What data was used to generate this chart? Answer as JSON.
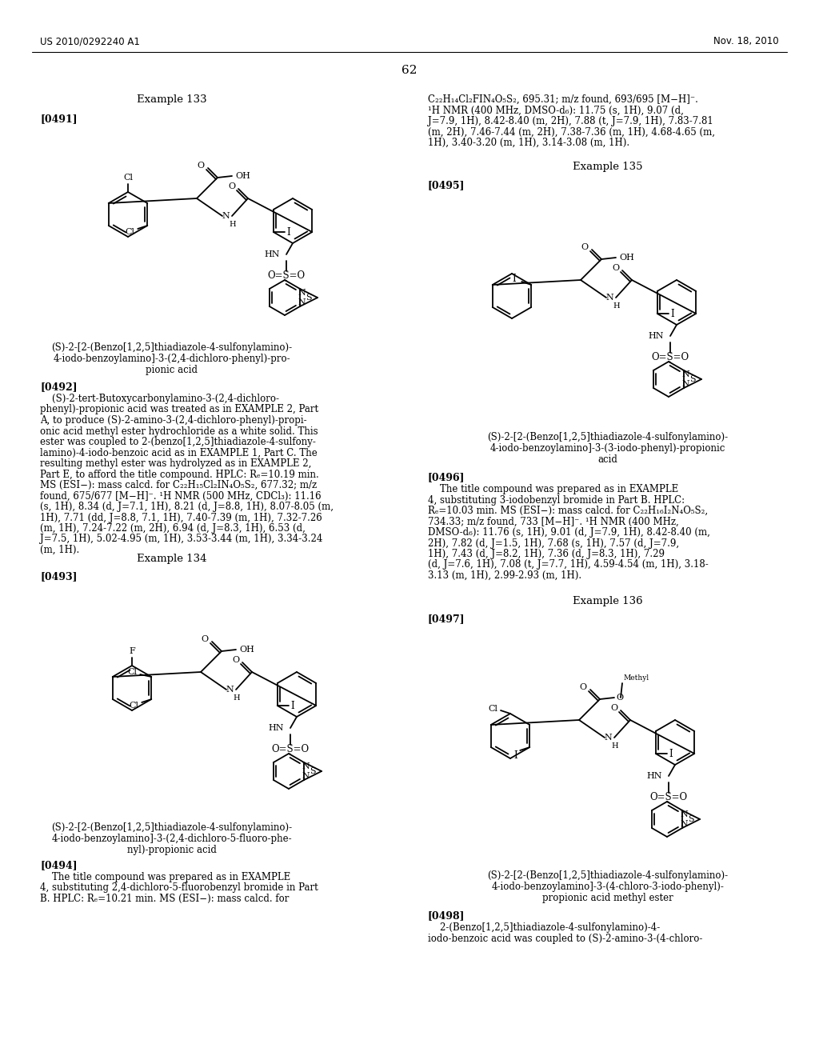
{
  "bg": "#ffffff",
  "header_left": "US 2010/0292240 A1",
  "header_right": "Nov. 18, 2010",
  "page_num": "62",
  "ex133_title": "Example 133",
  "ex133_tag": "[0491]",
  "ex133_name_lines": [
    "(S)-2-[2-(Benzo[1,2,5]thiadiazole-4-sulfonylamino)-",
    "4-iodo-benzoylamino]-3-(2,4-dichloro-phenyl)-pro-",
    "pionic acid"
  ],
  "p492_tag": "[0492]",
  "p492_lines": [
    "    (S)-2-tert-Butoxycarbonylamino-3-(2,4-dichloro-",
    "phenyl)-propionic acid was treated as in EXAMPLE 2, Part",
    "A, to produce (S)-2-amino-3-(2,4-dichloro-phenyl)-propi-",
    "onic acid methyl ester hydrochloride as a white solid. This",
    "ester was coupled to 2-(benzo[1,2,5]thiadiazole-4-sulfony-",
    "lamino)-4-iodo-benzoic acid as in EXAMPLE 1, Part C. The",
    "resulting methyl ester was hydrolyzed as in EXAMPLE 2,",
    "Part E, to afford the title compound. HPLC: Rₑ=10.19 min.",
    "MS (ESI−): mass calcd. for C₂₂H₁₅Cl₂IN₄O₅S₂, 677.32; m/z",
    "found, 675/677 [M−H]⁻. ¹H NMR (500 MHz, CDCl₃): 11.16",
    "(s, 1H), 8.34 (d, J=7.1, 1H), 8.21 (d, J=8.8, 1H), 8.07-8.05 (m,",
    "1H), 7.71 (dd, J=8.8, 7.1, 1H), 7.40-7.39 (m, 1H), 7.32-7.26",
    "(m, 1H), 7.24-7.22 (m, 2H), 6.94 (d, J=8.3, 1H), 6.53 (d,",
    "J=7.5, 1H), 5.02-4.95 (m, 1H), 3.53-3.44 (m, 1H), 3.34-3.24",
    "(m, 1H)."
  ],
  "ex134_title": "Example 134",
  "ex134_tag": "[0493]",
  "ex134_name_lines": [
    "(S)-2-[2-(Benzo[1,2,5]thiadiazole-4-sulfonylamino)-",
    "4-iodo-benzoylamino]-3-(2,4-dichloro-5-fluoro-phe-",
    "nyl)-propionic acid"
  ],
  "p494_tag": "[0494]",
  "p494_lines": [
    "    The title compound was prepared as in EXAMPLE",
    "4, substituting 2,4-dichloro-5-fluorobenzyl bromide in Part",
    "B. HPLC: Rₑ=10.21 min. MS (ESI−): mass calcd. for"
  ],
  "rc_top_lines": [
    "C₂₂H₁₄Cl₂FIN₄O₅S₂, 695.31; m/z found, 693/695 [M−H]⁻.",
    "¹H NMR (400 MHz, DMSO-d₆): 11.75 (s, 1H), 9.07 (d,",
    "J=7.9, 1H), 8.42-8.40 (m, 2H), 7.88 (t, J=7.9, 1H), 7.83-7.81",
    "(m, 2H), 7.46-7.44 (m, 2H), 7.38-7.36 (m, 1H), 4.68-4.65 (m,",
    "1H), 3.40-3.20 (m, 1H), 3.14-3.08 (m, 1H)."
  ],
  "ex135_title": "Example 135",
  "ex135_tag": "[0495]",
  "ex135_name_lines": [
    "(S)-2-[2-(Benzo[1,2,5]thiadiazole-4-sulfonylamino)-",
    "4-iodo-benzoylamino]-3-(3-iodo-phenyl)-propionic",
    "acid"
  ],
  "p496_tag": "[0496]",
  "p496_lines": [
    "    The title compound was prepared as in EXAMPLE",
    "4, substituting 3-iodobenzyl bromide in Part B. HPLC:",
    "Rₑ=10.03 min. MS (ESI−): mass calcd. for C₂₂H₁₆I₂N₄O₅S₂,",
    "734.33; m/z found, 733 [M−H]⁻. ¹H NMR (400 MHz,",
    "DMSO-d₆): 11.76 (s, 1H), 9.01 (d, J=7.9, 1H), 8.42-8.40 (m,",
    "2H), 7.82 (d, J=1.5, 1H), 7.68 (s, 1H), 7.57 (d, J=7.9,",
    "1H), 7.43 (d, J=8.2, 1H), 7.36 (d, J=8.3, 1H), 7.29",
    "(d, J=7.6, 1H), 7.08 (t, J=7.7, 1H), 4.59-4.54 (m, 1H), 3.18-",
    "3.13 (m, 1H), 2.99-2.93 (m, 1H)."
  ],
  "ex136_title": "Example 136",
  "ex136_tag": "[0497]",
  "ex136_name_lines": [
    "(S)-2-[2-(Benzo[1,2,5]thiadiazole-4-sulfonylamino)-",
    "4-iodo-benzoylamino]-3-(4-chloro-3-iodo-phenyl)-",
    "propionic acid methyl ester"
  ],
  "p498_tag": "[0498]",
  "p498_lines": [
    "    2-(Benzo[1,2,5]thiadiazole-4-sulfonylamino)-4-",
    "iodo-benzoic acid was coupled to (S)-2-amino-3-(4-chloro-"
  ]
}
